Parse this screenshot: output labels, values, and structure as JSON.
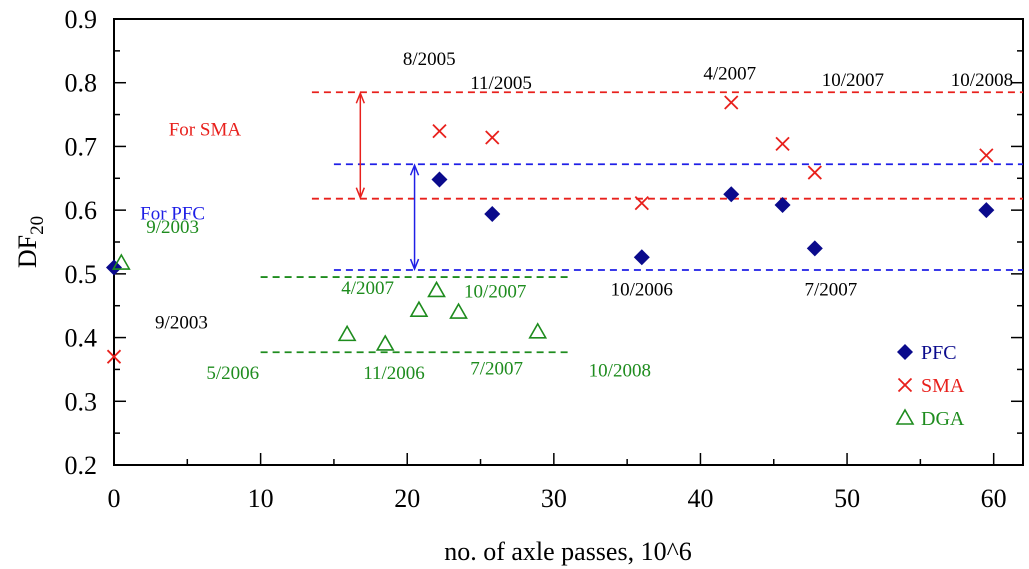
{
  "chart_data": {
    "type": "scatter",
    "title": "",
    "xlabel": "no. of axle passes, 10^6",
    "ylabel": {
      "main": "DF",
      "sub": "20"
    },
    "xlim": [
      0,
      62
    ],
    "ylim": [
      0.2,
      0.9
    ],
    "x_ticks": [
      "0",
      "10",
      "20",
      "30",
      "40",
      "50",
      "60"
    ],
    "y_ticks": [
      "0.2",
      "0.3",
      "0.4",
      "0.5",
      "0.6",
      "0.7",
      "0.8",
      "0.9"
    ],
    "grid": false,
    "legend_position": "bottom-right",
    "colors": {
      "PFC": "#0a0a8c",
      "SMA": "#e8201c",
      "DGA": "#1e8c1e",
      "blue_line": "#1f1fe6",
      "red_line": "#e8201c",
      "green_line": "#1e8c1e"
    },
    "series": [
      {
        "name": "PFC",
        "marker": "diamond",
        "points": [
          [
            0,
            0.51
          ],
          [
            22.2,
            0.648
          ],
          [
            25.8,
            0.594
          ],
          [
            36.0,
            0.526
          ],
          [
            42.1,
            0.625
          ],
          [
            45.6,
            0.608
          ],
          [
            47.8,
            0.54
          ],
          [
            59.5,
            0.6
          ]
        ]
      },
      {
        "name": "SMA",
        "marker": "x",
        "points": [
          [
            0,
            0.37
          ],
          [
            22.2,
            0.724
          ],
          [
            25.8,
            0.714
          ],
          [
            36.0,
            0.611
          ],
          [
            42.1,
            0.769
          ],
          [
            45.6,
            0.704
          ],
          [
            47.8,
            0.659
          ],
          [
            59.5,
            0.686
          ]
        ]
      },
      {
        "name": "DGA",
        "marker": "triangle",
        "points": [
          [
            0.5,
            0.517
          ],
          [
            15.9,
            0.405
          ],
          [
            18.5,
            0.39
          ],
          [
            20.8,
            0.443
          ],
          [
            22.0,
            0.474
          ],
          [
            23.5,
            0.44
          ],
          [
            28.9,
            0.409
          ]
        ]
      }
    ],
    "reference_lines": [
      {
        "group": "SMA",
        "y": 0.785,
        "x_from": 13.5,
        "x_to": 62
      },
      {
        "group": "SMA",
        "y": 0.618,
        "x_from": 13.5,
        "x_to": 62
      },
      {
        "group": "PFC",
        "y": 0.672,
        "x_from": 15.0,
        "x_to": 62
      },
      {
        "group": "PFC",
        "y": 0.506,
        "x_from": 15.0,
        "x_to": 62
      },
      {
        "group": "DGA",
        "y": 0.495,
        "x_from": 10.0,
        "x_to": 31.0
      },
      {
        "group": "DGA",
        "y": 0.377,
        "x_from": 10.0,
        "x_to": 31.0
      }
    ],
    "range_arrows": [
      {
        "label": "For SMA",
        "x": 16.8,
        "y_top": 0.785,
        "y_bottom": 0.618,
        "label_x": 6.2,
        "label_y": 0.717,
        "color": "red_line"
      },
      {
        "label": "For PFC",
        "x": 20.5,
        "y_top": 0.672,
        "y_bottom": 0.506,
        "label_x": 4.0,
        "label_y": 0.585,
        "color": "blue_line"
      }
    ],
    "annotations": [
      {
        "text": "8/2005",
        "x": 21.5,
        "y": 0.828,
        "color": "black"
      },
      {
        "text": "11/2005",
        "x": 26.4,
        "y": 0.79,
        "color": "black"
      },
      {
        "text": "4/2007",
        "x": 42.0,
        "y": 0.805,
        "color": "black"
      },
      {
        "text": "10/2007",
        "x": 50.4,
        "y": 0.795,
        "color": "black"
      },
      {
        "text": "10/2008",
        "x": 59.2,
        "y": 0.795,
        "color": "black"
      },
      {
        "text": "10/2006",
        "x": 36.0,
        "y": 0.466,
        "color": "black"
      },
      {
        "text": "7/2007",
        "x": 48.9,
        "y": 0.466,
        "color": "black"
      },
      {
        "text": "9/2003",
        "x": 4.6,
        "y": 0.414,
        "color": "black"
      },
      {
        "text": "9/2003",
        "x": 4.0,
        "y": 0.564,
        "color": "DGA"
      },
      {
        "text": "4/2007",
        "x": 17.3,
        "y": 0.468,
        "color": "DGA"
      },
      {
        "text": "10/2007",
        "x": 26.0,
        "y": 0.463,
        "color": "DGA"
      },
      {
        "text": "5/2006",
        "x": 8.1,
        "y": 0.335,
        "color": "DGA"
      },
      {
        "text": "11/2006",
        "x": 19.1,
        "y": 0.335,
        "color": "DGA"
      },
      {
        "text": "7/2007",
        "x": 26.1,
        "y": 0.342,
        "color": "DGA"
      },
      {
        "text": "10/2008",
        "x": 34.5,
        "y": 0.339,
        "color": "DGA"
      }
    ],
    "legend": [
      {
        "name": "PFC",
        "marker": "diamond"
      },
      {
        "name": "SMA",
        "marker": "x"
      },
      {
        "name": "DGA",
        "marker": "triangle"
      }
    ]
  }
}
